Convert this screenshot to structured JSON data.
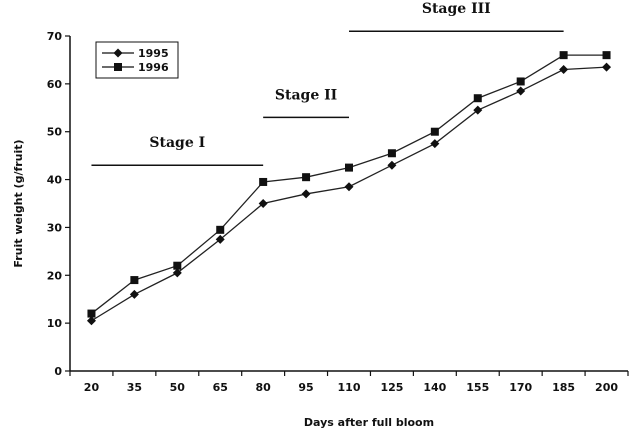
{
  "chart_data": {
    "type": "line",
    "title": "",
    "xlabel": "Days after full bloom",
    "ylabel": "Fruit weight (g/fruit)",
    "x": [
      20,
      35,
      50,
      65,
      80,
      95,
      110,
      125,
      140,
      155,
      170,
      185,
      200
    ],
    "x_tick_labels": [
      "20",
      "35",
      "50",
      "65",
      "80",
      "95",
      "110",
      "125",
      "140",
      "155",
      "170",
      "185",
      "200"
    ],
    "y_ticks": [
      0,
      10,
      20,
      30,
      40,
      50,
      60,
      70
    ],
    "y_tick_labels": [
      "0",
      "10",
      "20",
      "30",
      "40",
      "50",
      "60",
      "70"
    ],
    "ylim": [
      0,
      70
    ],
    "grid": false,
    "legend_position": "top-left",
    "series": [
      {
        "name": "1995",
        "marker": "diamond",
        "color": "#222222",
        "values": [
          10.5,
          16,
          20.5,
          27.5,
          35,
          37,
          38.5,
          43,
          47.5,
          54.5,
          58.5,
          63,
          63.5
        ]
      },
      {
        "name": "1996",
        "marker": "square",
        "color": "#222222",
        "values": [
          12,
          19,
          22,
          29.5,
          39.5,
          40.5,
          42.5,
          45.5,
          50,
          57,
          60.5,
          66,
          66
        ]
      }
    ],
    "annotations": [
      {
        "label": "Stage I",
        "x_start": 20,
        "x_end": 80,
        "y": 43
      },
      {
        "label": "Stage II",
        "x_start": 80,
        "x_end": 110,
        "y": 53
      },
      {
        "label": "Stage III",
        "x_start": 110,
        "x_end": 185,
        "y": 71
      }
    ]
  }
}
